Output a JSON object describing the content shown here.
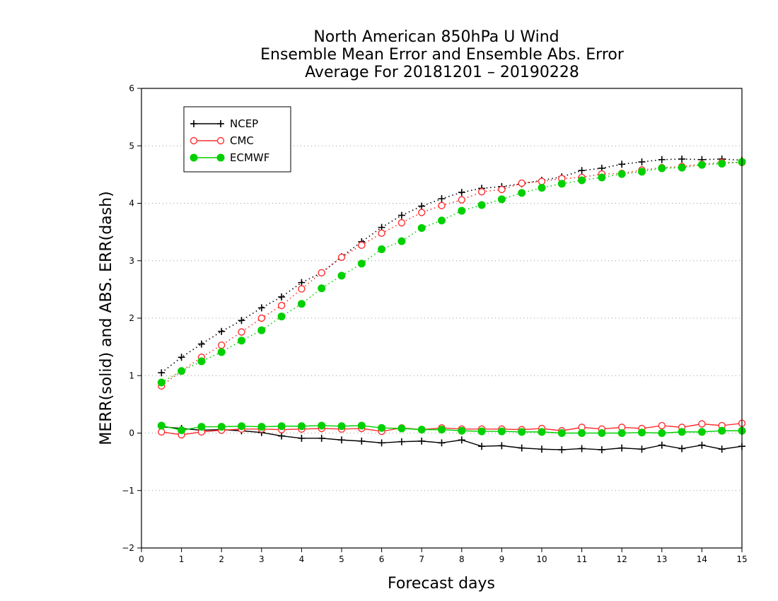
{
  "chart_data": {
    "type": "line",
    "title": [
      "North American 850hPa U Wind",
      "Ensemble Mean Error and Ensemble Abs. Error",
      "Average For 20181201 – 20190228"
    ],
    "xlabel": "Forecast days",
    "ylabel": "MERR(solid) and ABS. ERR(dash)",
    "xlim": [
      0,
      15
    ],
    "ylim": [
      -2,
      6
    ],
    "xticks": [
      0,
      1,
      2,
      3,
      4,
      5,
      6,
      7,
      8,
      9,
      10,
      11,
      12,
      13,
      14,
      15
    ],
    "yticks": [
      -2,
      -1,
      0,
      1,
      2,
      3,
      4,
      5,
      6
    ],
    "grid": "horizontal dotted",
    "legend": "top-left",
    "x": [
      0.5,
      1,
      1.5,
      2,
      2.5,
      3,
      3.5,
      4,
      4.5,
      5,
      5.5,
      6,
      6.5,
      7,
      7.5,
      8,
      8.5,
      9,
      9.5,
      10,
      10.5,
      11,
      11.5,
      12,
      12.5,
      13,
      13.5,
      14,
      14.5,
      15
    ],
    "series": [
      {
        "name": "NCEP",
        "color": "#000000",
        "marker": "plus",
        "abs_err": [
          1.05,
          1.32,
          1.55,
          1.77,
          1.96,
          2.18,
          2.37,
          2.62,
          2.79,
          3.07,
          3.33,
          3.58,
          3.79,
          3.95,
          4.08,
          4.19,
          4.26,
          4.29,
          4.34,
          4.4,
          4.46,
          4.57,
          4.61,
          4.68,
          4.72,
          4.76,
          4.77,
          4.76,
          4.77,
          4.75
        ],
        "mean_err": [
          0.11,
          0.08,
          0.05,
          0.06,
          0.04,
          0.01,
          -0.05,
          -0.09,
          -0.09,
          -0.12,
          -0.14,
          -0.17,
          -0.15,
          -0.14,
          -0.17,
          -0.12,
          -0.23,
          -0.22,
          -0.26,
          -0.28,
          -0.29,
          -0.27,
          -0.29,
          -0.26,
          -0.28,
          -0.21,
          -0.27,
          -0.21,
          -0.28,
          -0.23
        ]
      },
      {
        "name": "CMC",
        "color": "#ff3030",
        "marker": "open-circle",
        "abs_err": [
          0.82,
          1.08,
          1.32,
          1.53,
          1.76,
          2.0,
          2.22,
          2.51,
          2.79,
          3.06,
          3.27,
          3.48,
          3.66,
          3.84,
          3.96,
          4.06,
          4.2,
          4.24,
          4.35,
          4.38,
          4.43,
          4.45,
          4.51,
          4.52,
          4.58,
          4.62,
          4.64,
          4.68,
          4.71,
          4.71
        ],
        "mean_err": [
          0.02,
          -0.03,
          0.02,
          0.05,
          0.07,
          0.07,
          0.06,
          0.07,
          0.08,
          0.07,
          0.08,
          0.03,
          0.09,
          0.06,
          0.09,
          0.07,
          0.07,
          0.07,
          0.06,
          0.08,
          0.04,
          0.1,
          0.07,
          0.1,
          0.08,
          0.13,
          0.1,
          0.16,
          0.13,
          0.17
        ]
      },
      {
        "name": "ECMWF",
        "color": "#00d000",
        "marker": "filled-circle",
        "abs_err": [
          0.88,
          1.08,
          1.25,
          1.41,
          1.61,
          1.79,
          2.03,
          2.25,
          2.52,
          2.74,
          2.95,
          3.2,
          3.34,
          3.57,
          3.7,
          3.87,
          3.97,
          4.07,
          4.18,
          4.27,
          4.34,
          4.4,
          4.45,
          4.51,
          4.55,
          4.61,
          4.62,
          4.67,
          4.69,
          4.72
        ],
        "mean_err": [
          0.13,
          0.05,
          0.11,
          0.11,
          0.12,
          0.11,
          0.12,
          0.12,
          0.13,
          0.12,
          0.13,
          0.09,
          0.08,
          0.06,
          0.06,
          0.04,
          0.03,
          0.03,
          0.02,
          0.02,
          0.0,
          0.0,
          0.0,
          0.0,
          0.01,
          0.0,
          0.02,
          0.02,
          0.04,
          0.04
        ]
      }
    ]
  }
}
